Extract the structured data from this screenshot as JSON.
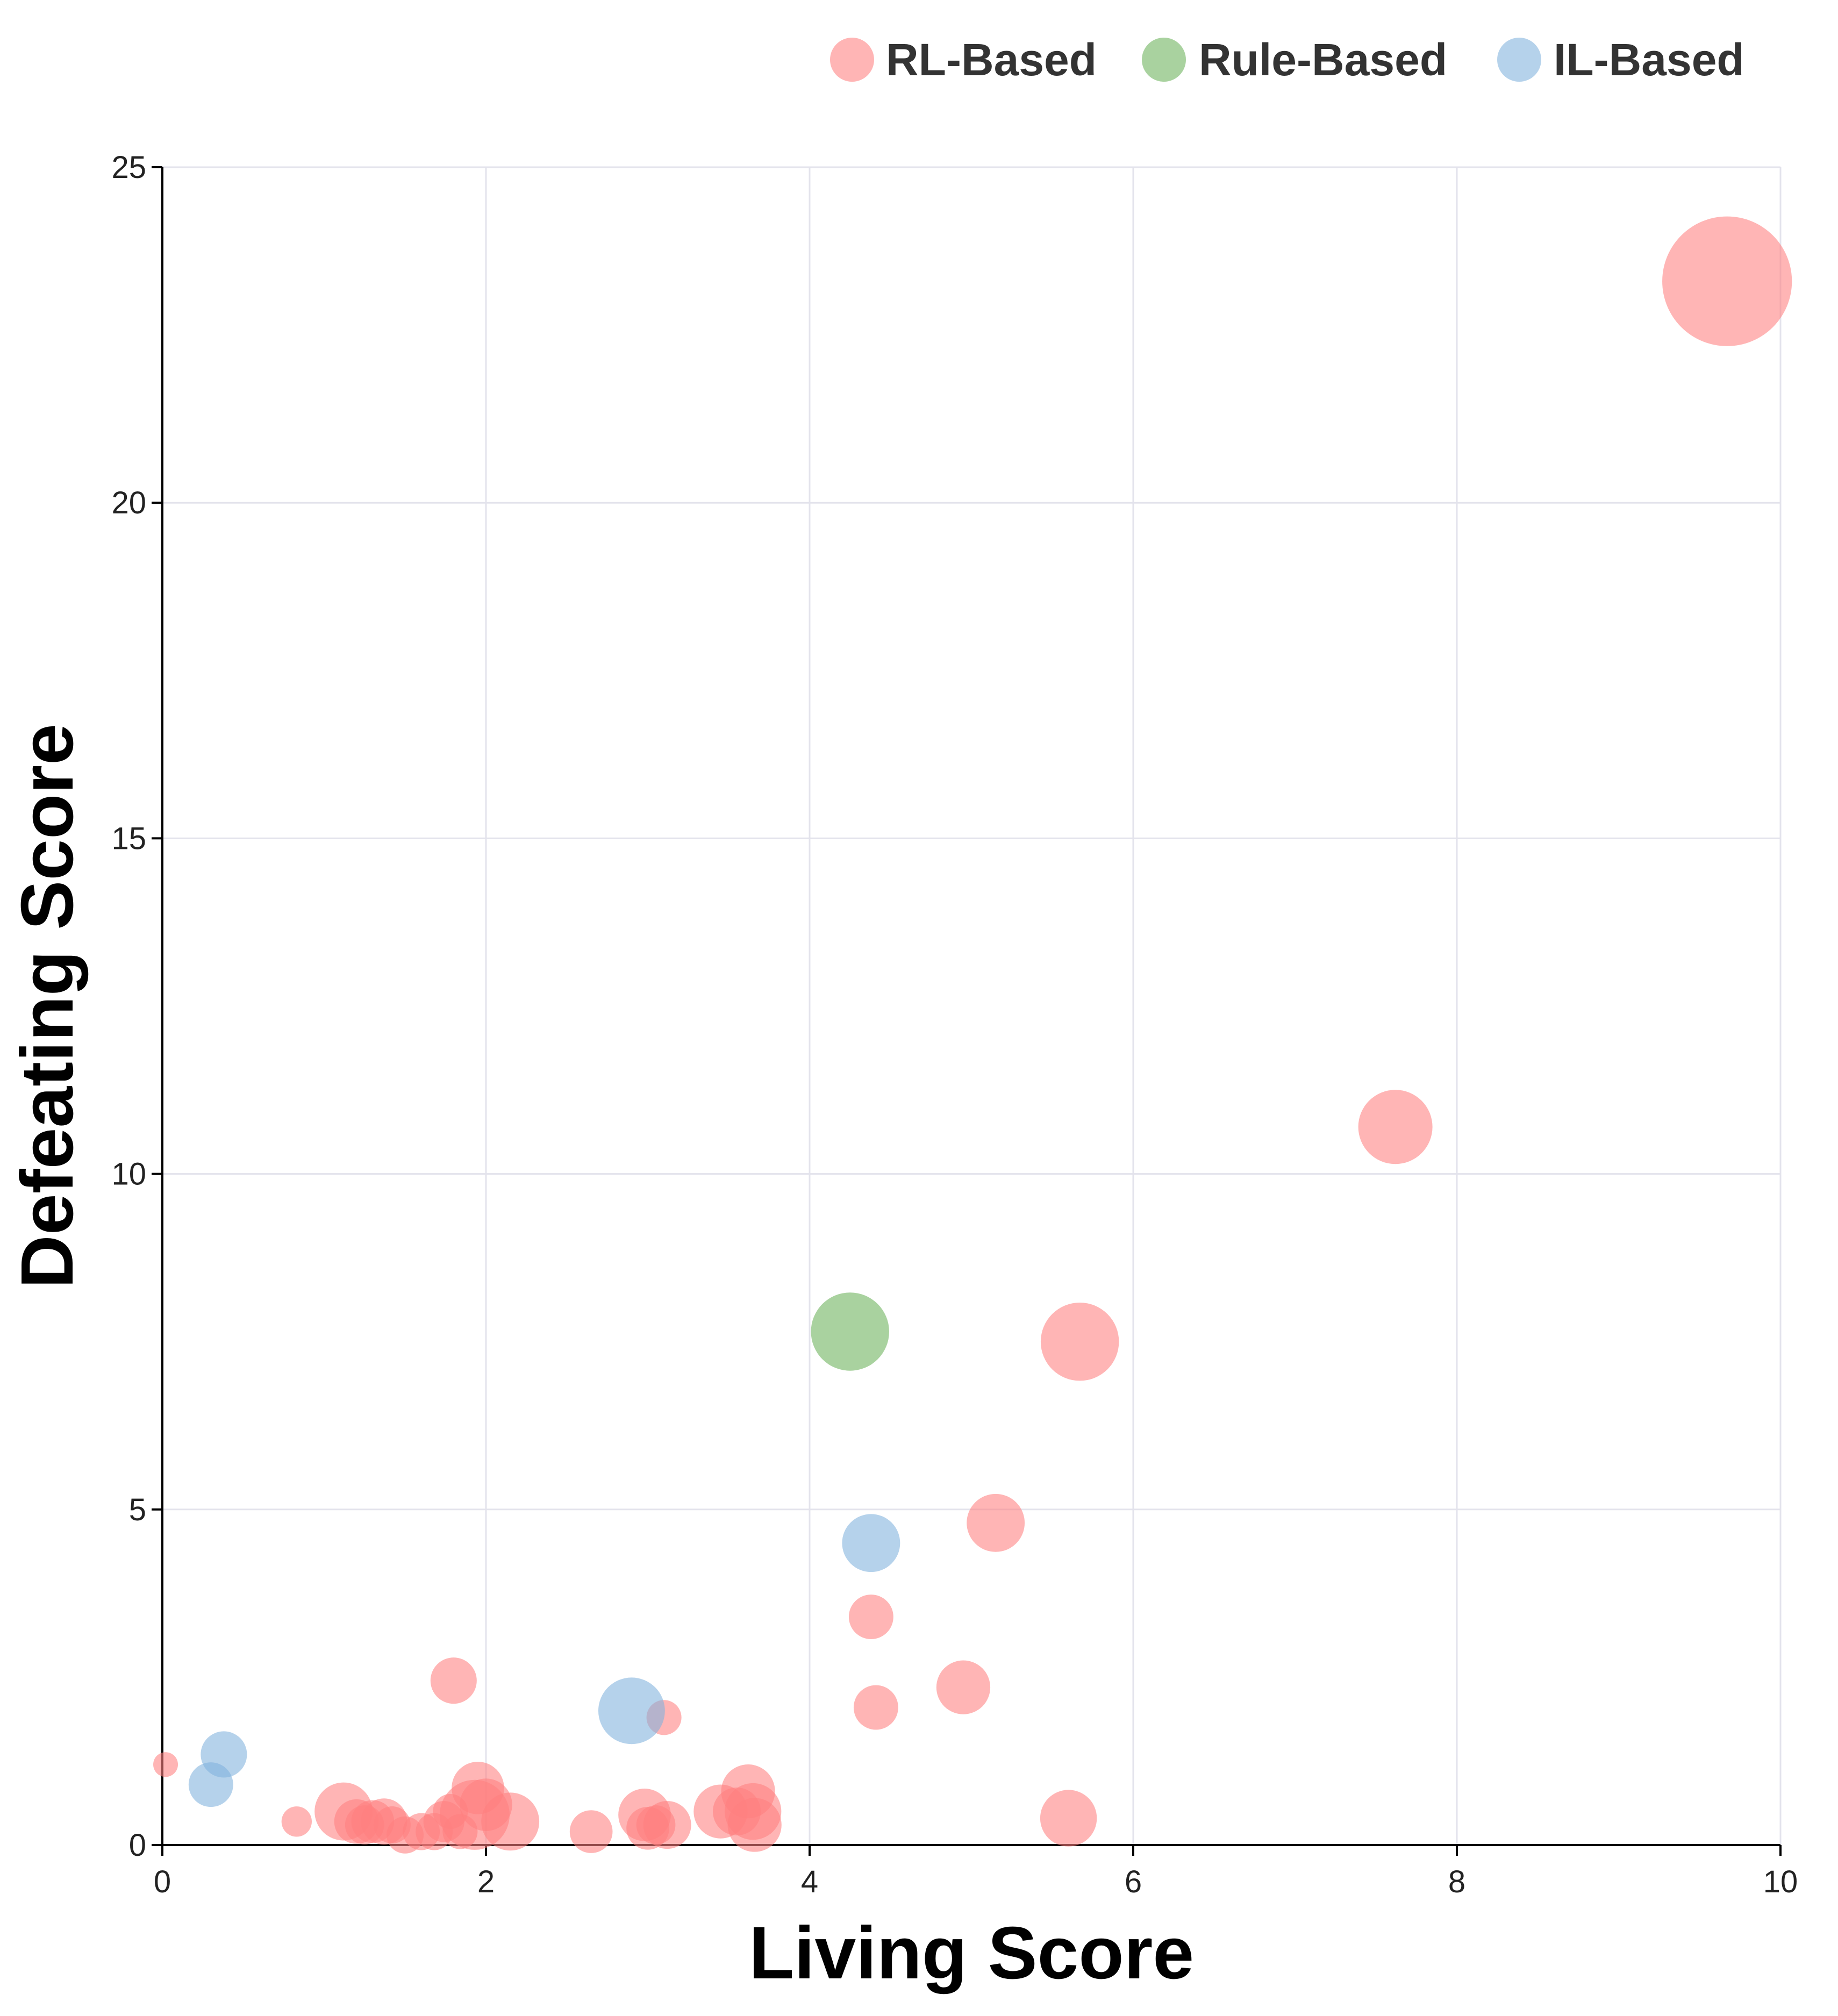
{
  "chart_data": {
    "type": "scatter",
    "xlabel": "Living Score",
    "ylabel": "Defeating Score",
    "xlim": [
      0,
      10
    ],
    "ylim": [
      0,
      25
    ],
    "x_ticks": [
      0,
      2,
      4,
      6,
      8,
      10
    ],
    "y_ticks": [
      0,
      5,
      10,
      15,
      20,
      25
    ],
    "grid": true,
    "legend_position": "top-right",
    "colors": {
      "RL-Based": "#ff7f7f",
      "Rule-Based": "#6ab15a",
      "IL-Based": "#7fb2dd"
    },
    "series": [
      {
        "name": "RL-Based",
        "points": [
          {
            "x": 9.67,
            "y": 23.3,
            "size": 110
          },
          {
            "x": 7.62,
            "y": 10.7,
            "size": 36
          },
          {
            "x": 5.67,
            "y": 7.5,
            "size": 40
          },
          {
            "x": 5.15,
            "y": 4.8,
            "size": 22
          },
          {
            "x": 4.38,
            "y": 3.4,
            "size": 13
          },
          {
            "x": 4.95,
            "y": 2.35,
            "size": 19
          },
          {
            "x": 4.41,
            "y": 2.05,
            "size": 13
          },
          {
            "x": 5.6,
            "y": 0.4,
            "size": 21
          },
          {
            "x": 1.8,
            "y": 2.45,
            "size": 14
          },
          {
            "x": 3.1,
            "y": 1.9,
            "size": 8
          },
          {
            "x": 0.02,
            "y": 1.2,
            "size": 4
          },
          {
            "x": 0.83,
            "y": 0.35,
            "size": 6
          },
          {
            "x": 1.12,
            "y": 0.5,
            "size": 22
          },
          {
            "x": 1.2,
            "y": 0.35,
            "size": 13
          },
          {
            "x": 1.25,
            "y": 0.3,
            "size": 10
          },
          {
            "x": 1.3,
            "y": 0.35,
            "size": 12
          },
          {
            "x": 1.37,
            "y": 0.35,
            "size": 14
          },
          {
            "x": 1.42,
            "y": 0.3,
            "size": 9
          },
          {
            "x": 1.5,
            "y": 0.15,
            "size": 9
          },
          {
            "x": 1.6,
            "y": 0.2,
            "size": 9
          },
          {
            "x": 1.68,
            "y": 0.2,
            "size": 9
          },
          {
            "x": 1.74,
            "y": 0.35,
            "size": 11
          },
          {
            "x": 1.78,
            "y": 0.5,
            "size": 8
          },
          {
            "x": 1.84,
            "y": 0.2,
            "size": 8
          },
          {
            "x": 1.95,
            "y": 0.85,
            "size": 18
          },
          {
            "x": 1.93,
            "y": 0.45,
            "size": 32
          },
          {
            "x": 2.0,
            "y": 0.6,
            "size": 18
          },
          {
            "x": 2.15,
            "y": 0.35,
            "size": 22
          },
          {
            "x": 2.65,
            "y": 0.2,
            "size": 12
          },
          {
            "x": 2.98,
            "y": 0.45,
            "size": 18
          },
          {
            "x": 3.0,
            "y": 0.25,
            "size": 12
          },
          {
            "x": 3.05,
            "y": 0.3,
            "size": 10
          },
          {
            "x": 3.12,
            "y": 0.3,
            "size": 15
          },
          {
            "x": 3.45,
            "y": 0.5,
            "size": 19
          },
          {
            "x": 3.55,
            "y": 0.5,
            "size": 15
          },
          {
            "x": 3.62,
            "y": 0.8,
            "size": 19
          },
          {
            "x": 3.65,
            "y": 0.5,
            "size": 21
          },
          {
            "x": 3.66,
            "y": 0.3,
            "size": 19
          }
        ]
      },
      {
        "name": "Rule-Based",
        "points": [
          {
            "x": 4.25,
            "y": 7.65,
            "size": 40
          }
        ]
      },
      {
        "name": "IL-Based",
        "points": [
          {
            "x": 4.38,
            "y": 4.5,
            "size": 22
          },
          {
            "x": 2.9,
            "y": 2.0,
            "size": 29
          },
          {
            "x": 0.38,
            "y": 1.35,
            "size": 14
          },
          {
            "x": 0.3,
            "y": 0.9,
            "size": 13
          }
        ]
      }
    ]
  }
}
